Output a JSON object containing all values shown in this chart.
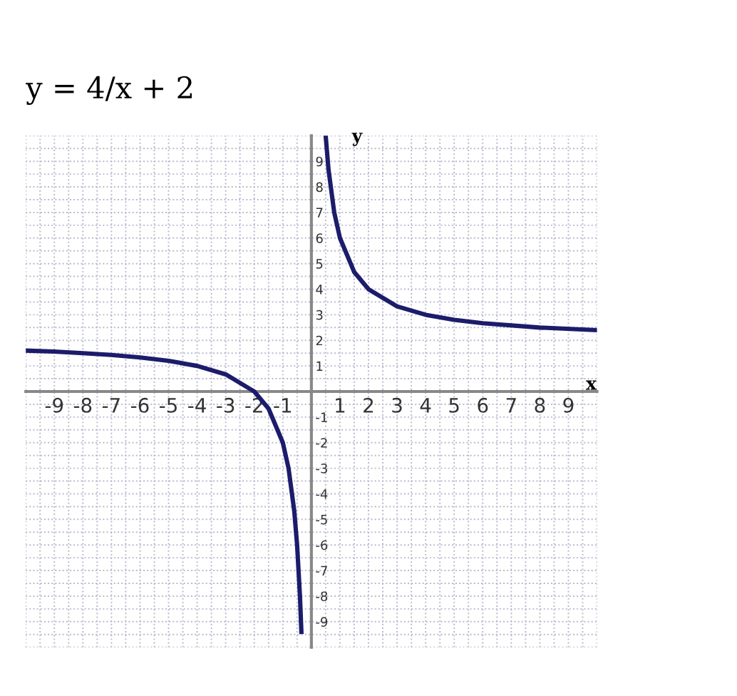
{
  "chart_data": {
    "type": "line",
    "title": "y = 4/x + 2",
    "xlabel": "x",
    "ylabel": "y",
    "xlim": [
      -10,
      10
    ],
    "ylim": [
      -10,
      10
    ],
    "xticks": [
      -9,
      -8,
      -7,
      -6,
      -5,
      -4,
      -3,
      -2,
      -1,
      1,
      2,
      3,
      4,
      5,
      6,
      7,
      8,
      9
    ],
    "yticks": [
      -9,
      -8,
      -7,
      -6,
      -5,
      -4,
      -3,
      -2,
      -1,
      1,
      2,
      3,
      4,
      5,
      6,
      7,
      8,
      9
    ],
    "grid": true,
    "line_style": "solid",
    "marker": "none",
    "series": [
      {
        "color": "#1c1c6b",
        "x": [
          -10,
          -9,
          -8,
          -7,
          -6,
          -5,
          -4,
          -3,
          -2,
          -1.5,
          -1,
          -0.8,
          -0.6,
          -0.5,
          -0.4,
          -0.35
        ],
        "values": [
          1.6,
          1.56,
          1.5,
          1.43,
          1.33,
          1.2,
          1,
          0.67,
          0,
          -0.67,
          -2,
          -3,
          -4.67,
          -6,
          -8,
          -9.4
        ]
      },
      {
        "color": "#1c1c6b",
        "x": [
          0.5,
          0.6,
          0.8,
          1,
          1.5,
          2,
          3,
          4,
          5,
          6,
          8,
          10
        ],
        "values": [
          10,
          8.67,
          7,
          6,
          4.67,
          4,
          3.33,
          3,
          2.8,
          2.67,
          2.5,
          2.4
        ]
      }
    ]
  }
}
